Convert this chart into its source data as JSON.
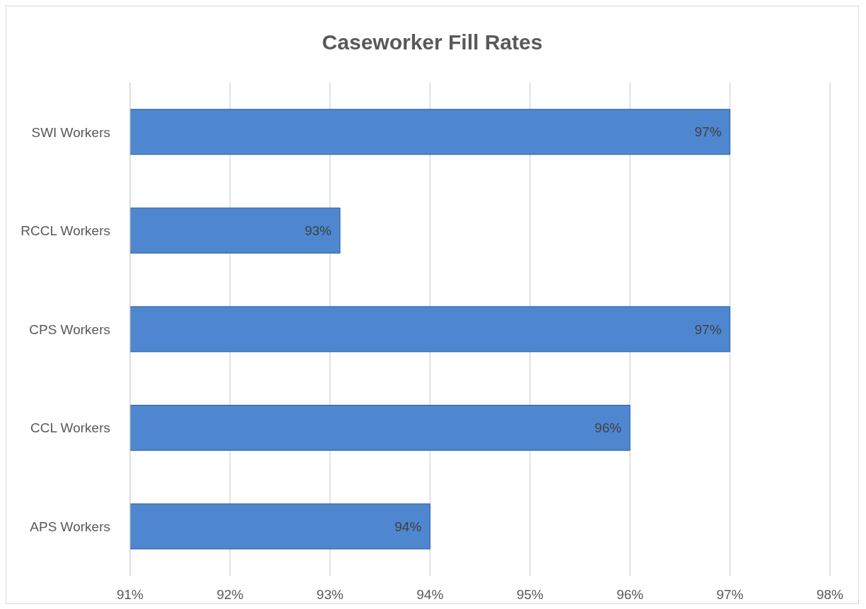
{
  "chart_data": {
    "type": "bar",
    "orientation": "horizontal",
    "title": "Caseworker Fill Rates",
    "categories": [
      "SWI Workers",
      "RCCL Workers",
      "CPS Workers",
      "CCL Workers",
      "APS Workers"
    ],
    "values": [
      97,
      93.1,
      97,
      96,
      94
    ],
    "value_labels": [
      "97%",
      "93%",
      "97%",
      "96%",
      "94%"
    ],
    "color": "#4f86d0",
    "xlim": [
      91,
      98
    ],
    "xticks": [
      {
        "value": 91,
        "label": "91%"
      },
      {
        "value": 92,
        "label": "92%"
      },
      {
        "value": 93,
        "label": "93%"
      },
      {
        "value": 94,
        "label": "94%"
      },
      {
        "value": 95,
        "label": "95%"
      },
      {
        "value": 96,
        "label": "96%"
      },
      {
        "value": 97,
        "label": "97%"
      },
      {
        "value": 98,
        "label": "98%"
      }
    ],
    "grid": "x",
    "legend": false
  }
}
